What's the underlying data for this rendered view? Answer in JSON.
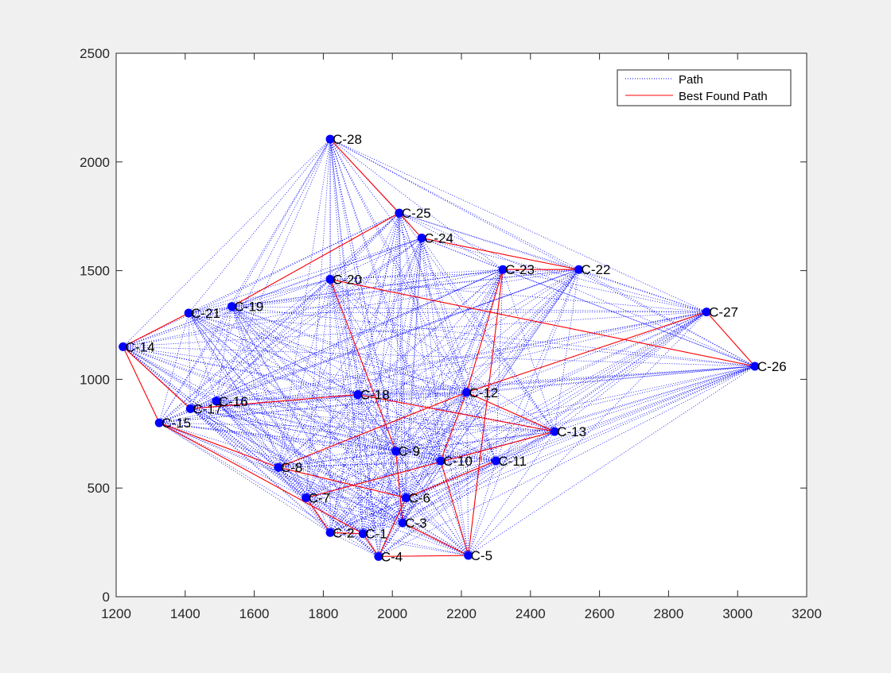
{
  "window": {
    "background": "#f0f0f0"
  },
  "chart_data": {
    "type": "scatter",
    "title": "",
    "xlabel": "",
    "ylabel": "",
    "xlim": [
      1200,
      3200
    ],
    "ylim": [
      0,
      2500
    ],
    "xticks": [
      1200,
      1400,
      1600,
      1800,
      2000,
      2200,
      2400,
      2600,
      2800,
      3000,
      3200
    ],
    "yticks": [
      0,
      500,
      1000,
      1500,
      2000,
      2500
    ],
    "grid": false,
    "legend": {
      "placement": "top-right",
      "entries": [
        {
          "label": "Path",
          "style": "dotted",
          "color": "#0000ff"
        },
        {
          "label": "Best Found Path",
          "style": "solid",
          "color": "#ff0000"
        }
      ]
    },
    "colors": {
      "marker": "#0000ff",
      "path": "#0000ff",
      "best_path": "#ff0000"
    },
    "cities": [
      {
        "label": "C-1",
        "x": 1915,
        "y": 290
      },
      {
        "label": "C-2",
        "x": 1820,
        "y": 295
      },
      {
        "label": "C-3",
        "x": 2030,
        "y": 340
      },
      {
        "label": "C-4",
        "x": 1960,
        "y": 185
      },
      {
        "label": "C-5",
        "x": 2220,
        "y": 190
      },
      {
        "label": "C-6",
        "x": 2040,
        "y": 455
      },
      {
        "label": "C-7",
        "x": 1750,
        "y": 455
      },
      {
        "label": "C-8",
        "x": 1670,
        "y": 595
      },
      {
        "label": "C-9",
        "x": 2010,
        "y": 670
      },
      {
        "label": "C-10",
        "x": 2140,
        "y": 625
      },
      {
        "label": "C-11",
        "x": 2300,
        "y": 625
      },
      {
        "label": "C-12",
        "x": 2215,
        "y": 940
      },
      {
        "label": "C-13",
        "x": 2470,
        "y": 760
      },
      {
        "label": "C-14",
        "x": 1220,
        "y": 1150
      },
      {
        "label": "C-15",
        "x": 1325,
        "y": 800
      },
      {
        "label": "C-16",
        "x": 1490,
        "y": 900
      },
      {
        "label": "C-17",
        "x": 1415,
        "y": 865
      },
      {
        "label": "C-18",
        "x": 1900,
        "y": 930
      },
      {
        "label": "C-19",
        "x": 1535,
        "y": 1335
      },
      {
        "label": "C-20",
        "x": 1820,
        "y": 1460
      },
      {
        "label": "C-21",
        "x": 1410,
        "y": 1305
      },
      {
        "label": "C-22",
        "x": 2540,
        "y": 1505
      },
      {
        "label": "C-23",
        "x": 2320,
        "y": 1505
      },
      {
        "label": "C-24",
        "x": 2085,
        "y": 1650
      },
      {
        "label": "C-25",
        "x": 2020,
        "y": 1765
      },
      {
        "label": "C-26",
        "x": 3050,
        "y": 1060
      },
      {
        "label": "C-27",
        "x": 2910,
        "y": 1310
      },
      {
        "label": "C-28",
        "x": 1820,
        "y": 2105
      }
    ],
    "best_path_segments": [
      [
        28,
        25
      ],
      [
        25,
        24
      ],
      [
        24,
        22
      ],
      [
        22,
        23
      ],
      [
        23,
        12
      ],
      [
        12,
        13
      ],
      [
        13,
        18
      ],
      [
        18,
        17
      ],
      [
        17,
        14
      ],
      [
        14,
        21
      ],
      [
        14,
        15
      ],
      [
        15,
        8
      ],
      [
        8,
        6
      ],
      [
        6,
        4
      ],
      [
        4,
        1
      ],
      [
        1,
        2
      ],
      [
        2,
        7
      ],
      [
        7,
        13
      ],
      [
        15,
        1
      ],
      [
        5,
        3
      ],
      [
        3,
        9
      ],
      [
        9,
        20
      ],
      [
        20,
        26
      ],
      [
        26,
        27
      ],
      [
        27,
        12
      ],
      [
        12,
        10
      ],
      [
        10,
        5
      ],
      [
        4,
        5
      ],
      [
        25,
        19
      ],
      [
        6,
        11
      ],
      [
        23,
        5
      ],
      [
        8,
        12
      ]
    ]
  }
}
